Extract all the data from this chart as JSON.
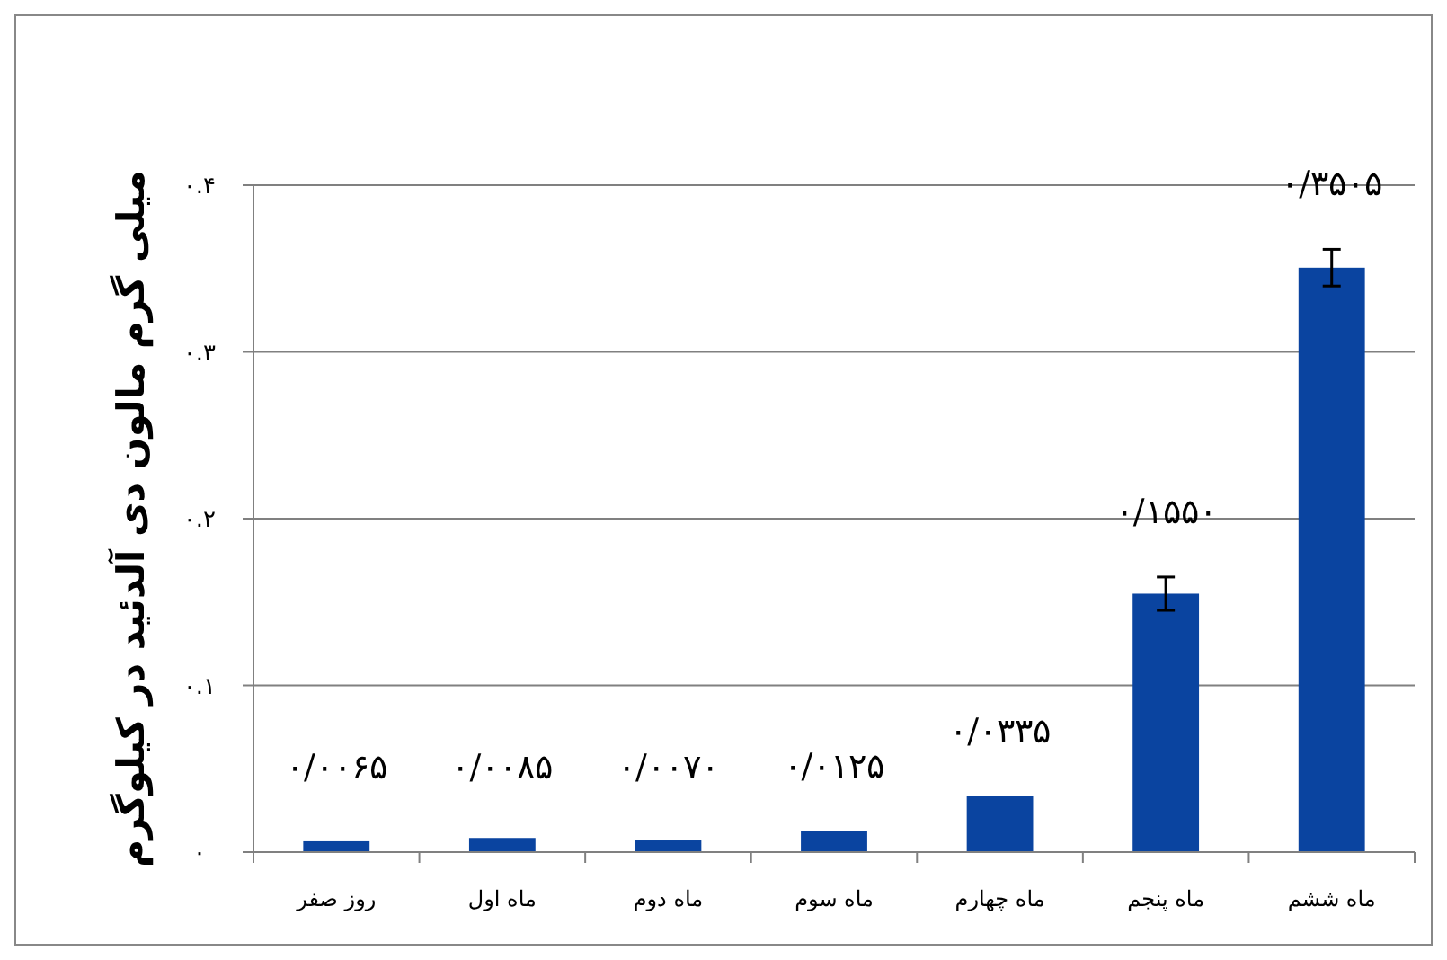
{
  "chart_data": {
    "type": "bar",
    "ylabel": "میلی گرم مالون دی آلدئید در کیلوگرم",
    "categories": [
      "روز صفر",
      "ماه اول",
      "ماه دوم",
      "ماه سوم",
      "ماه چهارم",
      "ماه پنجم",
      "ماه ششم"
    ],
    "values": [
      0.0065,
      0.0085,
      0.007,
      0.0125,
      0.0335,
      0.155,
      0.3505
    ],
    "errors": [
      null,
      null,
      null,
      null,
      null,
      0.01,
      0.011
    ],
    "value_labels": [
      "۰/۰۰۶۵",
      "۰/۰۰۸۵",
      "۰/۰۰۷۰",
      "۰/۰۱۲۵",
      "۰/۰۳۳۵",
      "۰/۱۵۵۰",
      "۰/۳۵۰۵"
    ],
    "color": "#0a44a0",
    "ylim": [
      0,
      0.4
    ],
    "yticks": [
      {
        "value": 0,
        "label": "۰"
      },
      {
        "value": 0.1,
        "label": "۰.۱"
      },
      {
        "value": 0.2,
        "label": "۰.۲"
      },
      {
        "value": 0.3,
        "label": "۰.۳"
      },
      {
        "value": 0.4,
        "label": "۰.۴"
      }
    ],
    "grid": "y"
  }
}
